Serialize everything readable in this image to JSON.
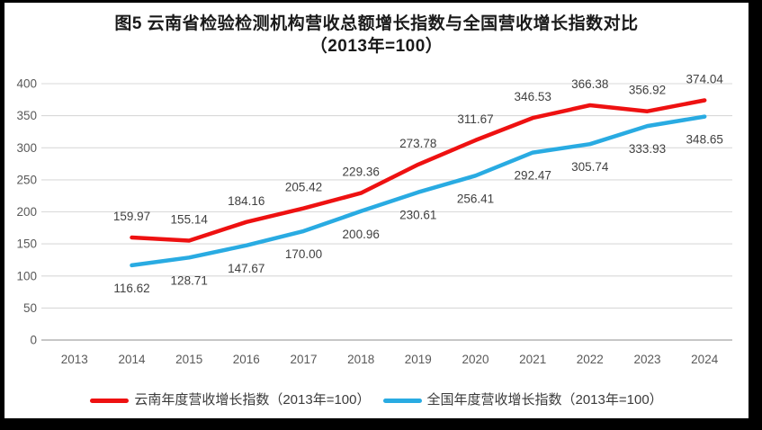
{
  "figure": {
    "title_line1": "图5  云南省检验检测机构营收总额增长指数与全国营收增长指数对比",
    "title_line2": "（2013年=100）"
  },
  "colors": {
    "background": "#ffffff",
    "frame": "#000000",
    "gridline": "#d9d9d9",
    "axis_line": "#bfbfbf",
    "tick_label": "#595959",
    "data_label": "#404040",
    "title": "#1a1a1a",
    "yunnan_red": "#ee1111",
    "national_blue": "#29abe2"
  },
  "chart_data": {
    "type": "line",
    "title": "图5 云南省检验检测机构营收总额增长指数与全国营收增长指数对比（2013年=100）",
    "xlabel": "",
    "ylabel": "",
    "categories": [
      "2013",
      "2014",
      "2015",
      "2016",
      "2017",
      "2018",
      "2019",
      "2020",
      "2021",
      "2022",
      "2023",
      "2024"
    ],
    "series": [
      {
        "name": "云南年度营收增长指数（2013年=100）",
        "color": "#ee1111",
        "values": [
          null,
          159.97,
          155.14,
          184.16,
          205.42,
          229.36,
          273.78,
          311.67,
          346.53,
          366.38,
          356.92,
          374.04
        ],
        "label_position": "above"
      },
      {
        "name": "全国年度营收增长指数（2013年=100）",
        "color": "#29abe2",
        "values": [
          null,
          116.62,
          128.71,
          147.67,
          170.0,
          200.96,
          230.61,
          256.41,
          292.47,
          305.74,
          333.93,
          348.65
        ],
        "label_position": "below"
      }
    ],
    "ylim": [
      0,
      400
    ],
    "yticks": [
      0,
      50,
      100,
      150,
      200,
      250,
      300,
      350,
      400
    ],
    "grid": true,
    "grid_direction": "horizontal",
    "data_labels": true,
    "data_label_decimals": 2,
    "legend_position": "bottom"
  }
}
